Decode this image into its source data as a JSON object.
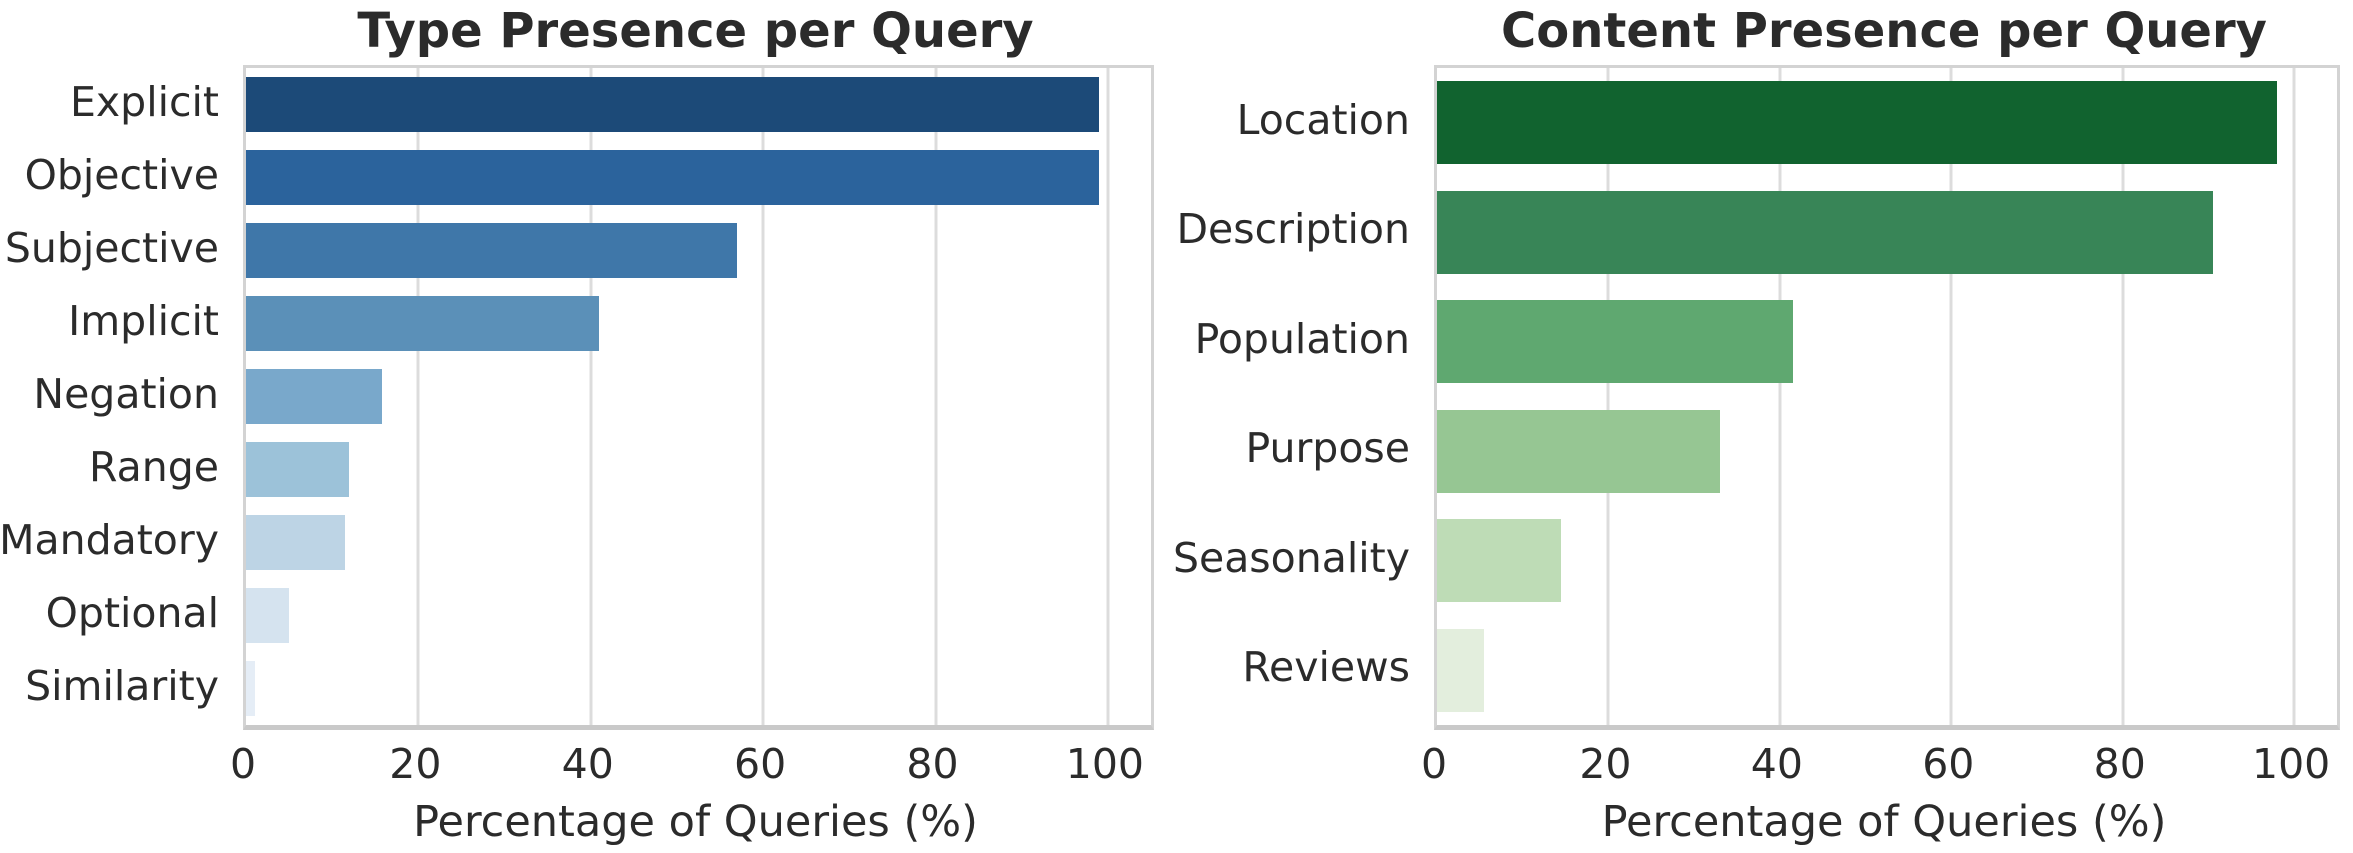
{
  "figure": {
    "background_color": "#ffffff",
    "text_color": "#2b2b2b",
    "grid_color": "#dcdcdc",
    "spine_color": "#d3d3d3",
    "axis_line_color": "#c9c9c9"
  },
  "chart_data": [
    {
      "type": "bar",
      "orientation": "horizontal",
      "title": "Type Presence per Query",
      "xlabel": "Percentage of Queries (%)",
      "ylabel": "",
      "categories": [
        "Explicit",
        "Objective",
        "Subjective",
        "Implicit",
        "Negation",
        "Range",
        "Mandatory",
        "Optional",
        "Similarity"
      ],
      "values": [
        99,
        99,
        57,
        41,
        15.8,
        12,
        11.5,
        5,
        1
      ],
      "bar_colors": [
        "#1c4a78",
        "#2b639c",
        "#3f77a9",
        "#5b90b8",
        "#79a8cb",
        "#9cc2d9",
        "#bdd4e5",
        "#d5e3ef",
        "#e5edf6"
      ],
      "palette": "Blues (dark to light)",
      "xlim": [
        0,
        105
      ],
      "xticks": [
        0,
        20,
        40,
        60,
        80,
        100
      ],
      "grid": true,
      "legend": null
    },
    {
      "type": "bar",
      "orientation": "horizontal",
      "title": "Content Presence per Query",
      "xlabel": "Percentage of Queries (%)",
      "ylabel": "",
      "categories": [
        "Location",
        "Description",
        "Population",
        "Purpose",
        "Seasonality",
        "Reviews"
      ],
      "values": [
        98,
        90.5,
        41.5,
        33,
        14.5,
        5.5
      ],
      "bar_colors": [
        "#11632f",
        "#388557",
        "#5fa870",
        "#96c693",
        "#bedcb6",
        "#e3eedd"
      ],
      "palette": "Greens (dark to light)",
      "xlim": [
        0,
        105
      ],
      "xticks": [
        0,
        20,
        40,
        60,
        80,
        100
      ],
      "grid": true,
      "legend": null
    }
  ]
}
